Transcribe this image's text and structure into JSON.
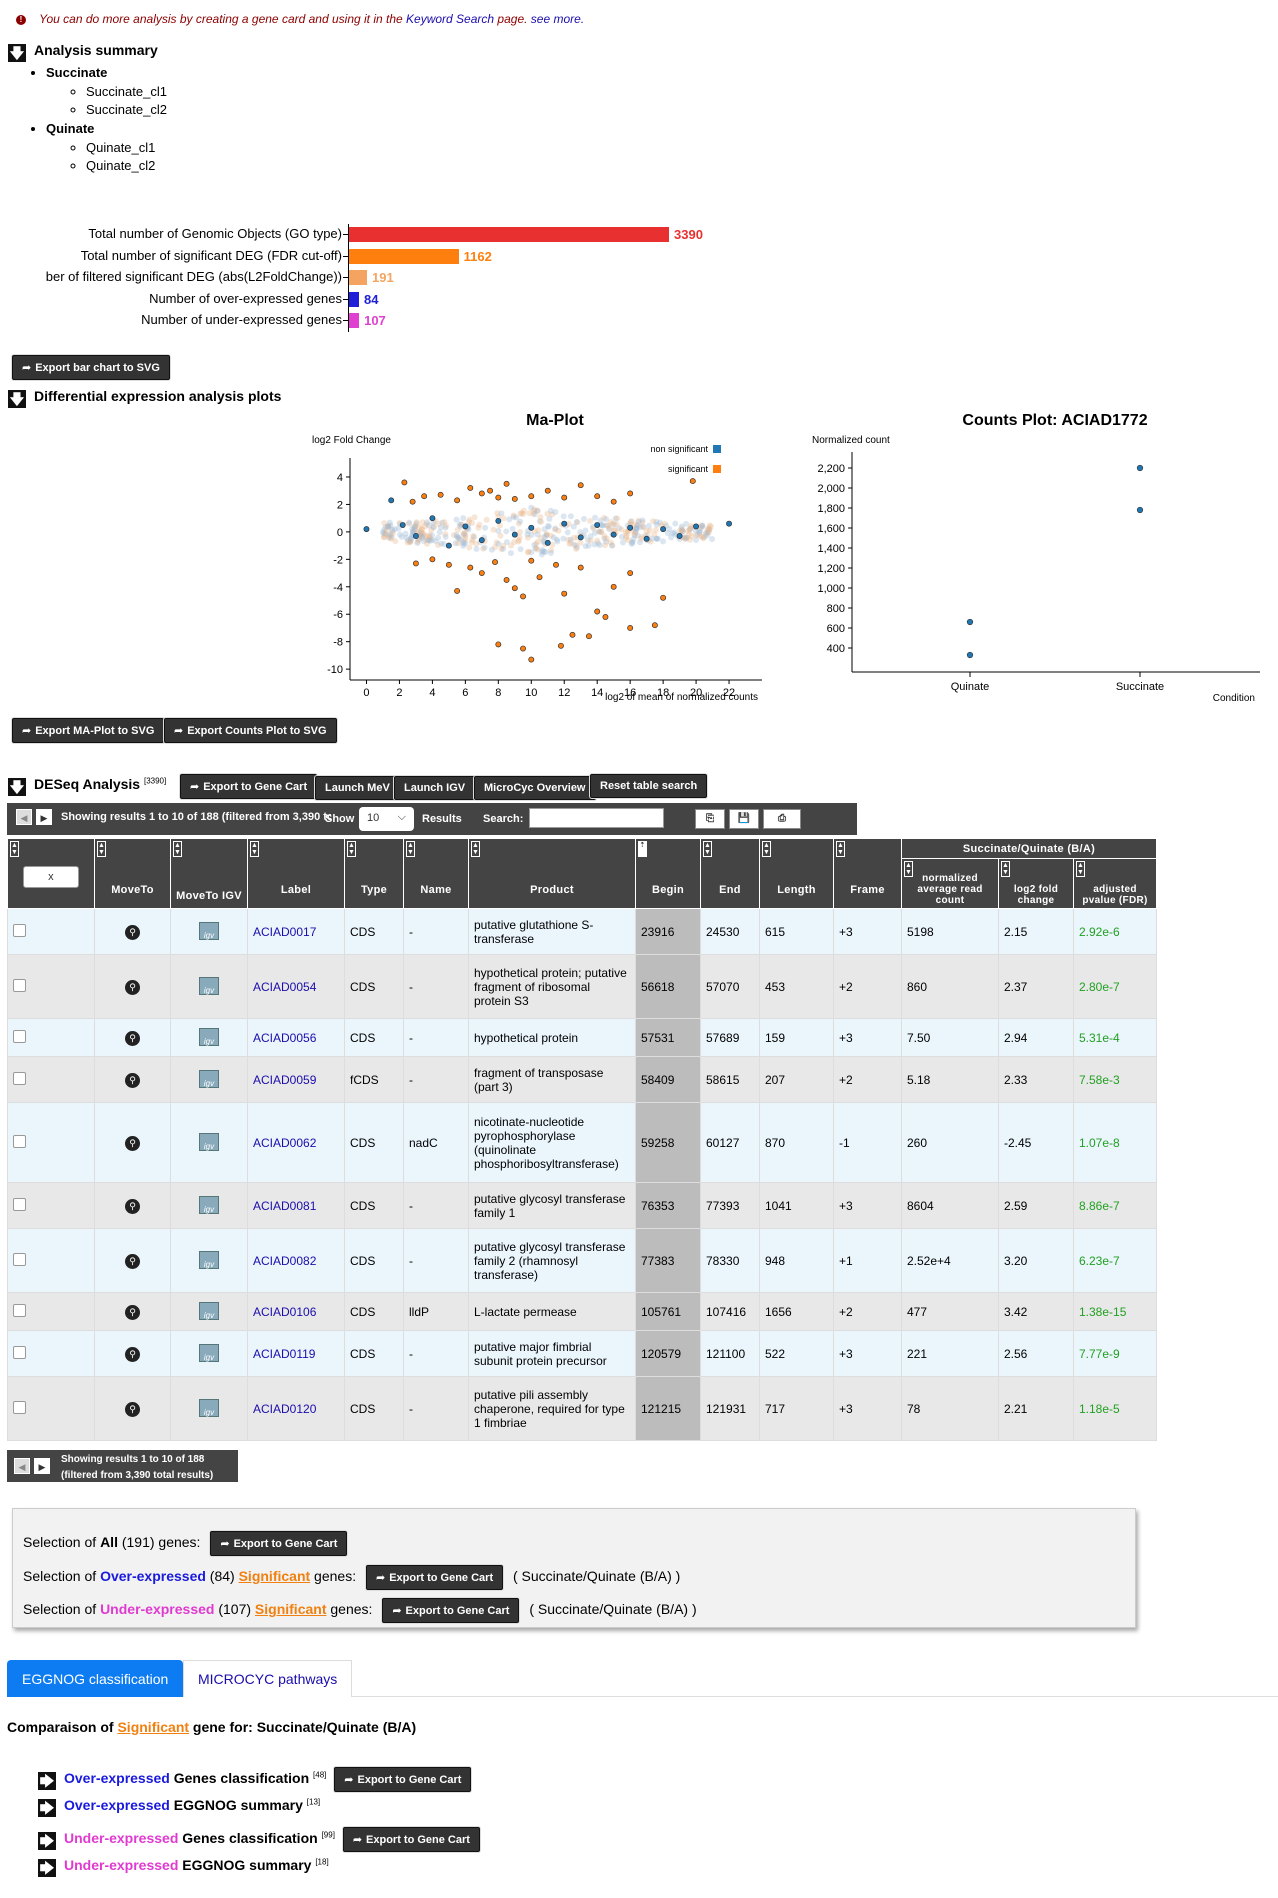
{
  "notice": {
    "text_before": "You can do more analysis by creating a gene card and using it in the",
    "link_text": "Keyword Search",
    "text_after": "page.",
    "see_more": "see more."
  },
  "summary": {
    "title": "Analysis summary",
    "groups": [
      {
        "name": "Succinate",
        "items": [
          "Succinate_cl1",
          "Succinate_cl2"
        ]
      },
      {
        "name": "Quinate",
        "items": [
          "Quinate_cl1",
          "Quinate_cl2"
        ]
      }
    ]
  },
  "bar_export_label": "Export bar chart to SVG",
  "plots_title": "Differential expression analysis plots",
  "ma_export_label": "Export MA-Plot to SVG",
  "counts_export_label": "Export Counts Plot to SVG",
  "chart_data": [
    {
      "type": "bar",
      "orientation": "horizontal",
      "categories": [
        "Total number of Genomic Objects (GO type)",
        "Total number of significant DEG (FDR cut-off)",
        "ber of filtered significant DEG (abs(L2FoldChange))",
        "Number of over-expressed genes",
        "Number of under-expressed genes"
      ],
      "values": [
        3390,
        1162,
        191,
        84,
        107
      ],
      "colors": [
        "#e83030",
        "#ff7f0e",
        "#f4a460",
        "#1f1fd8",
        "#e040d0"
      ],
      "grid": false
    },
    {
      "type": "scatter",
      "title": "Ma-Plot",
      "xlabel": "log2 of mean of normalized counts",
      "ylabel": "log2 Fold Change",
      "xlim": [
        -1,
        24
      ],
      "ylim": [
        -10.5,
        4.8
      ],
      "xticks": [
        0,
        2,
        4,
        6,
        8,
        10,
        12,
        14,
        16,
        18,
        20,
        22
      ],
      "yticks": [
        4,
        2,
        0,
        -2,
        -4,
        -6,
        -8,
        -10
      ],
      "legend": {
        "placement": "top-right",
        "entries": [
          "non significant",
          "significant"
        ]
      },
      "series": [
        {
          "name": "non significant",
          "color": "#1f77b4",
          "points": [
            [
              0,
              0.2
            ],
            [
              1.5,
              2.3
            ],
            [
              2.2,
              0.5
            ],
            [
              3,
              -0.3
            ],
            [
              4,
              1
            ],
            [
              5,
              -1
            ],
            [
              6,
              0.4
            ],
            [
              7,
              -0.6
            ],
            [
              8,
              0.8
            ],
            [
              9,
              -0.2
            ],
            [
              10,
              0.3
            ],
            [
              11,
              -0.8
            ],
            [
              12,
              0.6
            ],
            [
              13,
              -0.4
            ],
            [
              14,
              0.5
            ],
            [
              15,
              -0.2
            ],
            [
              16,
              0.3
            ],
            [
              17,
              -0.5
            ],
            [
              18,
              0.2
            ],
            [
              19,
              -0.3
            ],
            [
              20,
              0.4
            ],
            [
              22,
              0.6
            ]
          ]
        },
        {
          "name": "significant",
          "color": "#ff7f0e",
          "points": [
            [
              2.3,
              3.6
            ],
            [
              2.8,
              2.2
            ],
            [
              3.5,
              2.6
            ],
            [
              4.5,
              2.7
            ],
            [
              5.5,
              2.3
            ],
            [
              6.3,
              3.2
            ],
            [
              7,
              2.8
            ],
            [
              7.5,
              3.0
            ],
            [
              8,
              2.5
            ],
            [
              8.5,
              3.5
            ],
            [
              9,
              2.4
            ],
            [
              10,
              2.6
            ],
            [
              11,
              3.0
            ],
            [
              12,
              2.5
            ],
            [
              13,
              3.4
            ],
            [
              14,
              2.6
            ],
            [
              15,
              2.2
            ],
            [
              16,
              2.8
            ],
            [
              19.8,
              3.7
            ],
            [
              3,
              -2.3
            ],
            [
              4,
              -2.0
            ],
            [
              5,
              -2.4
            ],
            [
              5.5,
              -4.3
            ],
            [
              6.3,
              -2.6
            ],
            [
              7,
              -3.0
            ],
            [
              7.8,
              -2.2
            ],
            [
              8.5,
              -3.5
            ],
            [
              9,
              -4.1
            ],
            [
              9.5,
              -4.7
            ],
            [
              10,
              -2.1
            ],
            [
              10.5,
              -3.3
            ],
            [
              11.5,
              -2.4
            ],
            [
              12,
              -4.5
            ],
            [
              13,
              -2.6
            ],
            [
              13.5,
              -7.6
            ],
            [
              14,
              -5.8
            ],
            [
              14.5,
              -6.2
            ],
            [
              15,
              -4.0
            ],
            [
              16,
              -3.0
            ],
            [
              17.5,
              -6.8
            ],
            [
              18,
              -4.8
            ],
            [
              8,
              -8.2
            ],
            [
              9.5,
              -8.5
            ],
            [
              10,
              -9.3
            ],
            [
              11.8,
              -8.3
            ],
            [
              12.5,
              -7.5
            ],
            [
              16,
              -7.0
            ]
          ]
        }
      ]
    },
    {
      "type": "scatter",
      "title": "Counts Plot: ACIAD1772",
      "xlabel": "Condition",
      "ylabel": "Normalized count",
      "categories": [
        "Quinate",
        "Succinate"
      ],
      "ylim": [
        200,
        2300
      ],
      "yticks": [
        400,
        600,
        800,
        1000,
        1200,
        1400,
        1600,
        1800,
        2000,
        2200
      ],
      "series": [
        {
          "color": "#1f77b4",
          "points": [
            [
              "Quinate",
              660
            ],
            [
              "Quinate",
              330
            ],
            [
              "Succinate",
              2200
            ],
            [
              "Succinate",
              1780
            ]
          ]
        }
      ]
    }
  ],
  "deseq": {
    "title": "DESeq Analysis",
    "count": "[3390]",
    "buttons": [
      "Export to Gene Cart",
      "Launch MeV",
      "Launch IGV",
      "MicroCyc Overview",
      "Reset table search"
    ],
    "showing_top": "Showing results 1 to 10 of 188 (filtered from 3,390 total results)",
    "show_label": "Show",
    "show_value": "10",
    "results_label": "Results",
    "search_label": "Search:",
    "showing_bottom_1": "Showing results 1 to 10 of 188",
    "showing_bottom_2": "(filtered from 3,390 total results)",
    "group_header": "Succinate/Quinate (B/A)",
    "x_button": "x",
    "columns": [
      "MoveTo",
      "MoveTo IGV",
      "Label",
      "Type",
      "Name",
      "Product",
      "Begin",
      "End",
      "Length",
      "Frame",
      "normalized average read count",
      "log2 fold change",
      "adjusted pvalue (FDR)"
    ],
    "rows": [
      {
        "label": "ACIAD0017",
        "type": "CDS",
        "name": "-",
        "product": "putative glutathione S-transferase",
        "begin": "23916",
        "end": "24530",
        "length": "615",
        "frame": "+3",
        "count": "5198",
        "lfc": "2.15",
        "pval": "2.92e-6"
      },
      {
        "label": "ACIAD0054",
        "type": "CDS",
        "name": "-",
        "product": "hypothetical protein; putative fragment of ribosomal protein S3",
        "begin": "56618",
        "end": "57070",
        "length": "453",
        "frame": "+2",
        "count": "860",
        "lfc": "2.37",
        "pval": "2.80e-7"
      },
      {
        "label": "ACIAD0056",
        "type": "CDS",
        "name": "-",
        "product": "hypothetical protein",
        "begin": "57531",
        "end": "57689",
        "length": "159",
        "frame": "+3",
        "count": "7.50",
        "lfc": "2.94",
        "pval": "5.31e-4"
      },
      {
        "label": "ACIAD0059",
        "type": "fCDS",
        "name": "-",
        "product": "fragment of transposase (part 3)",
        "begin": "58409",
        "end": "58615",
        "length": "207",
        "frame": "+2",
        "count": "5.18",
        "lfc": "2.33",
        "pval": "7.58e-3"
      },
      {
        "label": "ACIAD0062",
        "type": "CDS",
        "name": "nadC",
        "product": "nicotinate-nucleotide pyrophosphorylase (quinolinate phosphoribosyltransferase)",
        "begin": "59258",
        "end": "60127",
        "length": "870",
        "frame": "-1",
        "count": "260",
        "lfc": "-2.45",
        "pval": "1.07e-8"
      },
      {
        "label": "ACIAD0081",
        "type": "CDS",
        "name": "-",
        "product": "putative glycosyl transferase family 1",
        "begin": "76353",
        "end": "77393",
        "length": "1041",
        "frame": "+3",
        "count": "8604",
        "lfc": "2.59",
        "pval": "8.86e-7"
      },
      {
        "label": "ACIAD0082",
        "type": "CDS",
        "name": "-",
        "product": "putative glycosyl transferase family 2 (rhamnosyl transferase)",
        "begin": "77383",
        "end": "78330",
        "length": "948",
        "frame": "+1",
        "count": "2.52e+4",
        "lfc": "3.20",
        "pval": "6.23e-7"
      },
      {
        "label": "ACIAD0106",
        "type": "CDS",
        "name": "lldP",
        "product": "L-lactate permease",
        "begin": "105761",
        "end": "107416",
        "length": "1656",
        "frame": "+2",
        "count": "477",
        "lfc": "3.42",
        "pval": "1.38e-15"
      },
      {
        "label": "ACIAD0119",
        "type": "CDS",
        "name": "-",
        "product": "putative major fimbrial subunit protein precursor",
        "begin": "120579",
        "end": "121100",
        "length": "522",
        "frame": "+3",
        "count": "221",
        "lfc": "2.56",
        "pval": "7.77e-9"
      },
      {
        "label": "ACIAD0120",
        "type": "CDS",
        "name": "-",
        "product": "putative pili assembly chaperone, required for type 1 fimbriae",
        "begin": "121215",
        "end": "121931",
        "length": "717",
        "frame": "+3",
        "count": "78",
        "lfc": "2.21",
        "pval": "1.18e-5"
      }
    ]
  },
  "selection": {
    "prefix": "Selection of",
    "all_word": "All",
    "all_count": "(191) genes:",
    "over_word": "Over-expressed",
    "over_count": "(84)",
    "under_word": "Under-expressed",
    "under_count": "(107)",
    "significant_word": "Significant",
    "genes_word": "genes:",
    "comparison": "( Succinate/Quinate (B/A) )",
    "export_label": "Export to Gene Cart"
  },
  "tabs": [
    "EGGNOG classification",
    "MICROCYC pathways"
  ],
  "comparison": {
    "prefix": "Comparaison of",
    "significant_word": "Significant",
    "suffix": "gene for: Succinate/Quinate (B/A)"
  },
  "classification": [
    {
      "kind": "Over-expressed",
      "text": "Genes classification",
      "count": "[48]",
      "export": "Export to Gene Cart"
    },
    {
      "kind": "Over-expressed",
      "text": "EGGNOG summary",
      "count": "[13]"
    },
    {
      "kind": "Under-expressed",
      "text": "Genes classification",
      "count": "[99]",
      "export": "Export to Gene Cart"
    },
    {
      "kind": "Under-expressed",
      "text": "EGGNOG summary",
      "count": "[18]"
    }
  ]
}
